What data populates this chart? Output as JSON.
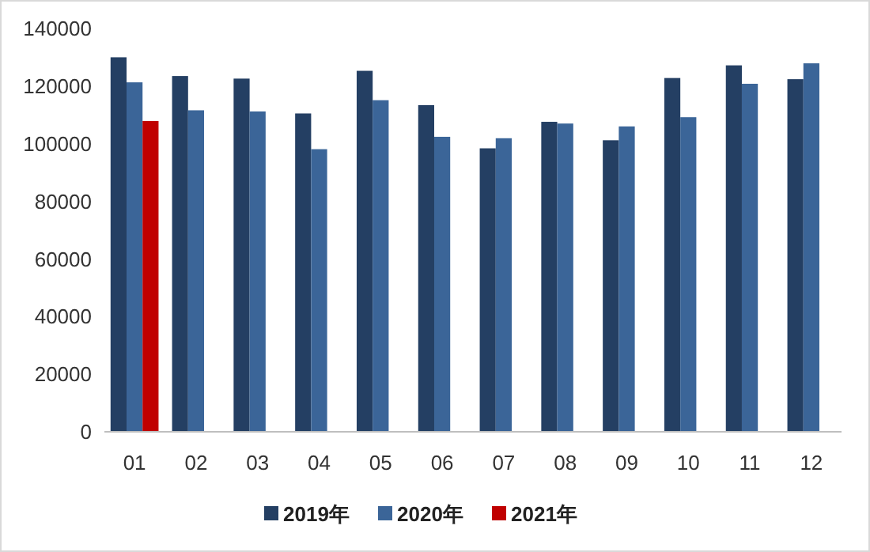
{
  "chart_data": {
    "type": "bar",
    "categories": [
      "01",
      "02",
      "03",
      "04",
      "05",
      "06",
      "07",
      "08",
      "09",
      "10",
      "11",
      "12"
    ],
    "series": [
      {
        "name": "2019年",
        "color": "#243f63",
        "values": [
          130000,
          123500,
          122600,
          110500,
          125300,
          113400,
          98400,
          107600,
          101200,
          122800,
          127200,
          122400
        ]
      },
      {
        "name": "2020年",
        "color": "#3b6598",
        "values": [
          121300,
          111600,
          111200,
          98100,
          115100,
          102400,
          101900,
          107000,
          106000,
          109200,
          120800,
          127900
        ]
      },
      {
        "name": "2021年",
        "color": "#c00000",
        "values": [
          107900,
          null,
          null,
          null,
          null,
          null,
          null,
          null,
          null,
          null,
          null,
          null
        ]
      }
    ],
    "ylim": [
      0,
      140000
    ],
    "yticks": [
      0,
      20000,
      40000,
      60000,
      80000,
      100000,
      120000,
      140000
    ],
    "grid": false,
    "legend": "bottom"
  }
}
